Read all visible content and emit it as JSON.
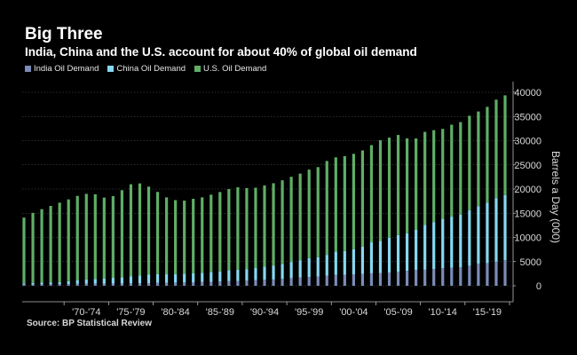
{
  "title": "Big Three",
  "subtitle": "India, China and the U.S. account for about 40% of global oil demand",
  "source": "Source: BP Statistical Review",
  "colors": {
    "india": "#7b8cb8",
    "china": "#86d8f0",
    "us": "#5fae66",
    "background": "#000000"
  },
  "chart_data": {
    "type": "bar",
    "stacked": true,
    "title": "Big Three",
    "subtitle": "India, China and the U.S. account for about 40% of global oil demand",
    "ylabel": "Barrels a Day (000)",
    "xlabel": "",
    "ylim": [
      0,
      42000
    ],
    "yticks": [
      0,
      5000,
      10000,
      15000,
      20000,
      25000,
      30000,
      35000,
      40000
    ],
    "x_tick_labels": [
      "'70-'74",
      "'75-'79",
      "'80-'84",
      "'85-'89",
      "'90-'94",
      "'95-'99",
      "'00-'04",
      "'05-'09",
      "'10-'14",
      "'15-'19"
    ],
    "x_start_year": 1965,
    "categories": [
      "1965",
      "1966",
      "1967",
      "1968",
      "1969",
      "1970",
      "1971",
      "1972",
      "1973",
      "1974",
      "1975",
      "1976",
      "1977",
      "1978",
      "1979",
      "1980",
      "1981",
      "1982",
      "1983",
      "1984",
      "1985",
      "1986",
      "1987",
      "1988",
      "1989",
      "1990",
      "1991",
      "1992",
      "1993",
      "1994",
      "1995",
      "1996",
      "1997",
      "1998",
      "1999",
      "2000",
      "2001",
      "2002",
      "2003",
      "2004",
      "2005",
      "2006",
      "2007",
      "2008",
      "2009",
      "2010",
      "2011",
      "2012",
      "2013",
      "2014",
      "2015",
      "2016",
      "2017",
      "2018",
      "2019"
    ],
    "legend": [
      "India Oil Demand",
      "China Oil Demand",
      "U.S. Oil Demand"
    ],
    "legend_position": "top-left",
    "series": [
      {
        "name": "India Oil Demand",
        "values": [
          250,
          270,
          290,
          310,
          330,
          360,
          380,
          400,
          420,
          430,
          440,
          460,
          490,
          510,
          550,
          600,
          630,
          660,
          700,
          730,
          780,
          830,
          880,
          950,
          1010,
          1100,
          1170,
          1240,
          1300,
          1410,
          1580,
          1690,
          1810,
          1930,
          2100,
          2250,
          2300,
          2380,
          2480,
          2580,
          2600,
          2720,
          2880,
          3080,
          3260,
          3320,
          3470,
          3640,
          3700,
          3840,
          4150,
          4540,
          4690,
          4980,
          5270
        ]
      },
      {
        "name": "China Oil Demand",
        "values": [
          250,
          300,
          350,
          400,
          450,
          600,
          800,
          900,
          1000,
          1100,
          1200,
          1300,
          1500,
          1650,
          1750,
          1800,
          1750,
          1750,
          1800,
          1850,
          1900,
          2000,
          2100,
          2250,
          2350,
          2300,
          2500,
          2700,
          2900,
          3100,
          3350,
          3600,
          3900,
          4000,
          4300,
          4800,
          4900,
          5200,
          5600,
          6400,
          6700,
          7200,
          7600,
          7800,
          8300,
          9300,
          9700,
          10200,
          10600,
          10900,
          11500,
          11900,
          12500,
          13100,
          13500
        ]
      },
      {
        "name": "U.S. Oil Demand",
        "values": [
          13600,
          14500,
          15200,
          15800,
          16400,
          16900,
          17400,
          17700,
          17500,
          16700,
          16900,
          18000,
          19000,
          19000,
          18200,
          17000,
          15900,
          15300,
          15100,
          15400,
          15600,
          16000,
          16400,
          16800,
          17000,
          16800,
          16600,
          16800,
          17000,
          17300,
          17600,
          17900,
          18300,
          18600,
          19400,
          19500,
          19600,
          19700,
          19900,
          20100,
          20800,
          20700,
          20700,
          19600,
          18900,
          19200,
          19000,
          18600,
          19000,
          19100,
          19500,
          19600,
          19800,
          20400,
          20600
        ]
      }
    ]
  }
}
